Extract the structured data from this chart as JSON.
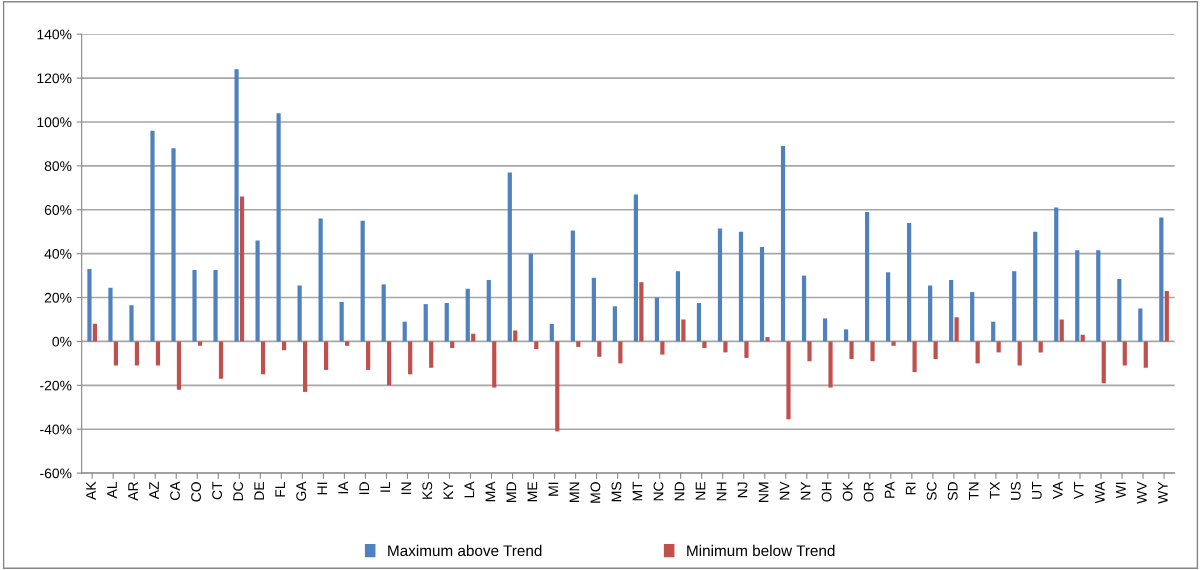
{
  "chart_data": {
    "type": "bar",
    "categories": [
      "AK",
      "AL",
      "AR",
      "AZ",
      "CA",
      "CO",
      "CT",
      "DC",
      "DE",
      "FL",
      "GA",
      "HI",
      "IA",
      "ID",
      "IL",
      "IN",
      "KS",
      "KY",
      "LA",
      "MA",
      "MD",
      "ME",
      "MI",
      "MN",
      "MO",
      "MS",
      "MT",
      "NC",
      "ND",
      "NE",
      "NH",
      "NJ",
      "NM",
      "NV",
      "NY",
      "OH",
      "OK",
      "OR",
      "PA",
      "RI",
      "SC",
      "SD",
      "TN",
      "TX",
      "US",
      "UT",
      "VA",
      "VT",
      "WA",
      "WI",
      "WV",
      "WY"
    ],
    "series": [
      {
        "name": "Maximum above Trend",
        "color": "#4f81bd",
        "values": [
          33,
          24.5,
          16.5,
          96,
          88,
          32.5,
          32.5,
          124,
          46,
          104,
          25.5,
          56,
          18,
          55,
          26,
          9,
          17,
          17.5,
          24,
          28,
          77,
          40,
          8,
          50.5,
          29,
          16,
          67,
          20,
          32,
          17.5,
          51.5,
          50,
          43,
          89,
          30,
          10.5,
          5.5,
          59,
          31.5,
          54,
          25.5,
          28,
          22.5,
          9,
          32,
          50,
          61,
          41.5,
          41.5,
          28.5,
          15,
          56.5
        ]
      },
      {
        "name": "Minimum below Trend",
        "color": "#c0504d",
        "values": [
          8,
          -11,
          -11,
          -11,
          -22,
          -2,
          -17,
          66,
          -15,
          -4,
          -23,
          -13,
          -2,
          -13,
          -20,
          -15,
          -12,
          -3,
          3.5,
          -21,
          5,
          -3.5,
          -41,
          -2.5,
          -7,
          -10,
          27,
          -6,
          10,
          -3,
          -5,
          -7.5,
          2,
          -35.5,
          -9,
          -21,
          -8,
          -9,
          -2,
          -14,
          -8,
          11,
          -10,
          -5,
          -11,
          -5,
          10,
          3,
          -19,
          -11,
          -12,
          23
        ]
      }
    ],
    "ylim": [
      -60,
      140
    ],
    "yticks": [
      {
        "value": -60,
        "label": "-60%"
      },
      {
        "value": -40,
        "label": "-40%"
      },
      {
        "value": -20,
        "label": "-20%"
      },
      {
        "value": 0,
        "label": "0%"
      },
      {
        "value": 20,
        "label": "20%"
      },
      {
        "value": 40,
        "label": "40%"
      },
      {
        "value": 60,
        "label": "60%"
      },
      {
        "value": 80,
        "label": "80%"
      },
      {
        "value": 100,
        "label": "100%"
      },
      {
        "value": 120,
        "label": "120%"
      },
      {
        "value": 140,
        "label": "140%"
      }
    ],
    "grid": "y",
    "legend": "bottom"
  }
}
